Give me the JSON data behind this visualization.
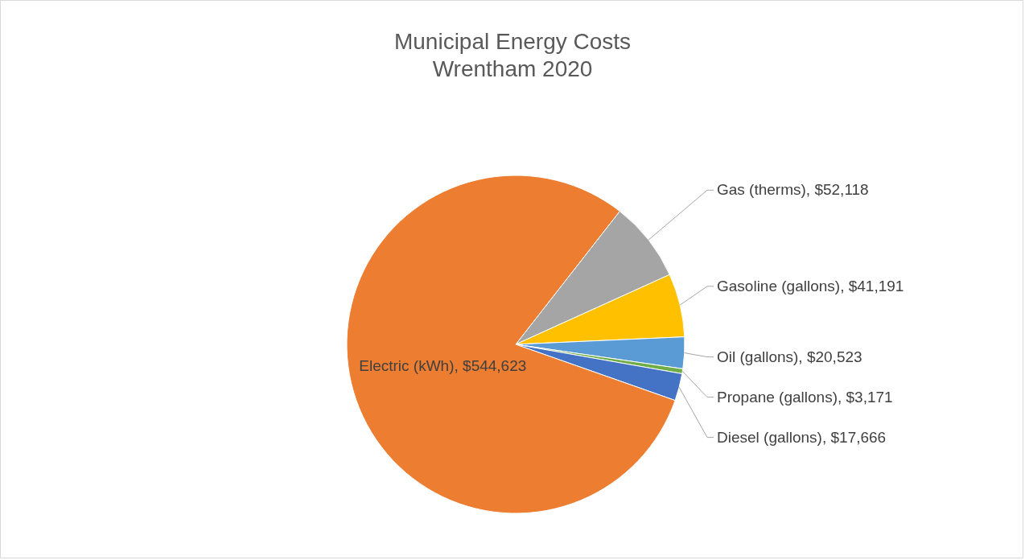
{
  "chart_data": {
    "type": "pie",
    "title": "Municipal Energy Costs",
    "subtitle": "Wrentham 2020",
    "categories": [
      "Gas (therms)",
      "Gasoline (gallons)",
      "Oil (gallons)",
      "Propane (gallons)",
      "Diesel (gallons)",
      "Electric (kWh)"
    ],
    "values": [
      52118,
      41191,
      20523,
      3171,
      17666,
      544623
    ],
    "value_labels": [
      "$52,118",
      "$41,191",
      "$20,523",
      "$3,171",
      "$17,666",
      "$544,623"
    ],
    "colors": [
      "#a5a5a5",
      "#ffc000",
      "#5b9bd5",
      "#70ad47",
      "#4472c4",
      "#ed7d31"
    ]
  }
}
